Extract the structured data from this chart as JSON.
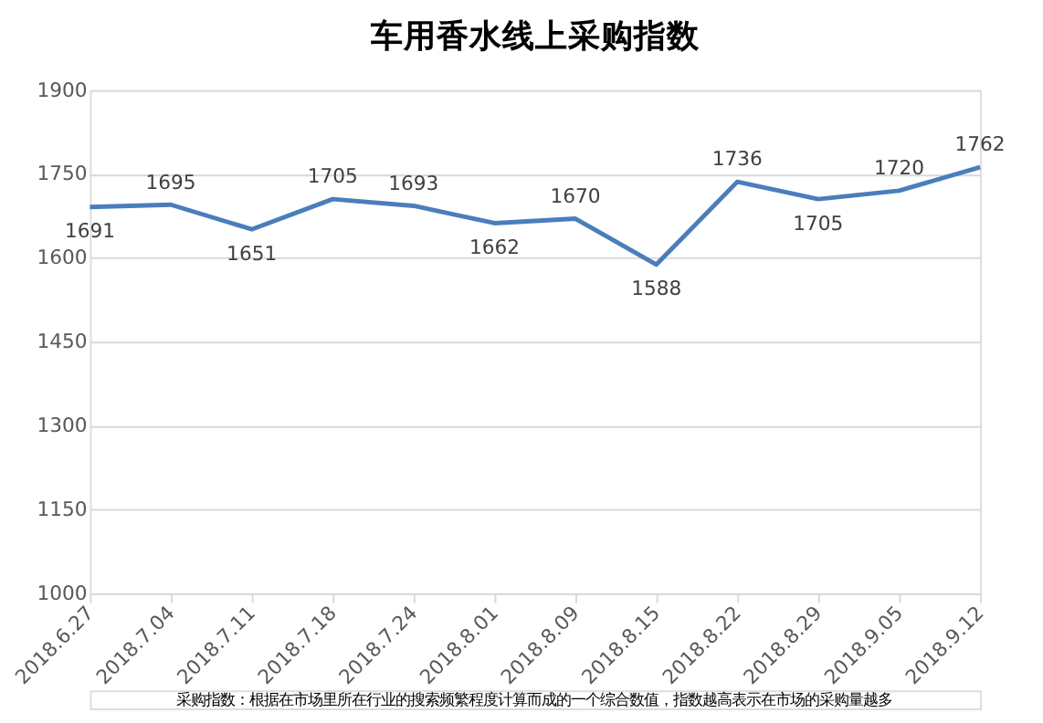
{
  "chart_data": {
    "type": "line",
    "title": "车用香水线上采购指数",
    "categories": [
      "2018.6.27",
      "2018.7.04",
      "2018.7.11",
      "2018.7.18",
      "2018.7.24",
      "2018.8.01",
      "2018.8.09",
      "2018.8.15",
      "2018.8.22",
      "2018.8.29",
      "2018.9.05",
      "2018.9.12"
    ],
    "series": [
      {
        "color": "#4a7ebb",
        "values": [
          1691,
          1695,
          1651,
          1705,
          1693,
          1662,
          1670,
          1588,
          1736,
          1705,
          1720,
          1762
        ]
      }
    ],
    "ylim": [
      1000,
      1900
    ],
    "yticks": [
      1000,
      1150,
      1300,
      1450,
      1600,
      1750,
      1900
    ],
    "grid": "y",
    "data_labels": true,
    "marker": "none",
    "line_style": "solid",
    "annotations": [
      "采购指数：根据在市场里所在行业的搜索频繁程度计算而成的一个综合数值，指数越高表示在市场的采购量越多"
    ]
  }
}
